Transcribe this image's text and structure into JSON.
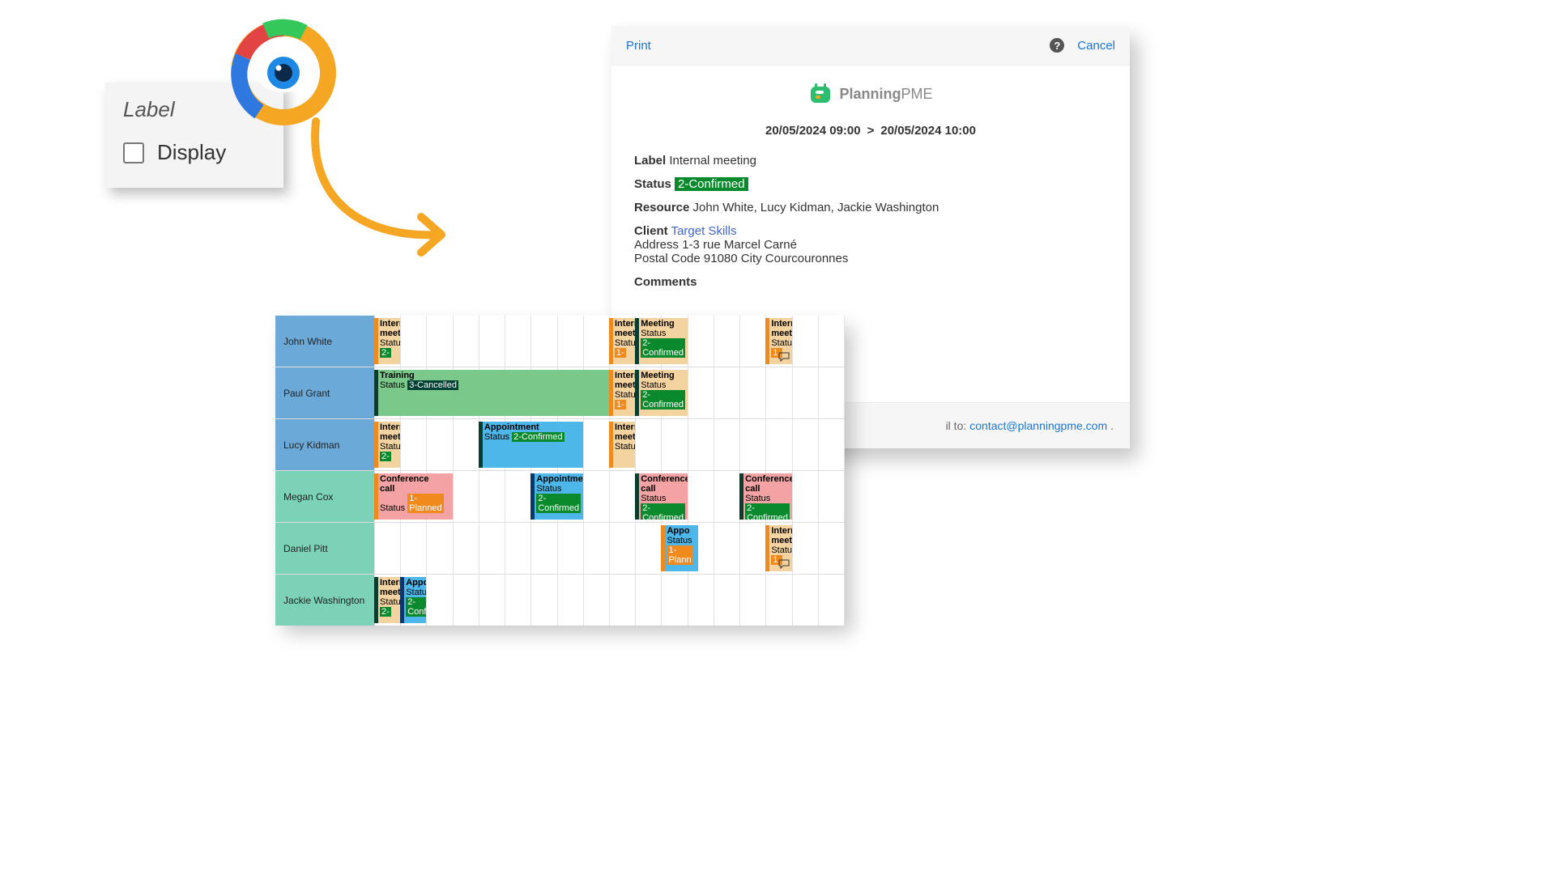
{
  "colors": {
    "blue_header": "#6aa9d8",
    "teal_header": "#7cd2b6",
    "event_beige": "#f3d3a0",
    "event_green": "#7ac88a",
    "event_sky": "#4db7ea",
    "event_pink": "#f3a3a3",
    "stripe_orange": "#f08a1d",
    "stripe_darkgreen": "#0b3d2e",
    "stripe_green": "#0a8a2d",
    "stripe_darkblue": "#0b376b",
    "chip_orange": "#f08a1d",
    "chip_green": "#0a8a2d",
    "chip_darkteal": "#014034",
    "print_link": "#1976d2"
  },
  "label_card": {
    "title": "Label",
    "checkbox_label": "Display"
  },
  "print_panel": {
    "print": "Print",
    "cancel": "Cancel",
    "brand_a": "Planning",
    "brand_b": "PME",
    "date_from": "20/05/2024 09:00",
    "date_sep": ">",
    "date_to": "20/05/2024 10:00",
    "label_key": "Label",
    "label_val": "Internal meeting",
    "status_key": "Status",
    "status_val": "2-Confirmed",
    "resource_key": "Resource",
    "resource_val": "John White, Lucy Kidman, Jackie Washington",
    "client_key": "Client",
    "client_val": "Target Skills",
    "address_key": "Address",
    "address_val": "1-3 rue Marcel Carné",
    "postal_key": "Postal Code",
    "postal_val": "91080",
    "city_key": "City",
    "city_val": "Courcouronnes",
    "comments_key": "Comments",
    "footer_txt": "il to:",
    "footer_mail": "contact@planningpme.com"
  },
  "schedule": {
    "track_width": 580,
    "name_width": 122,
    "columns": 18,
    "rows": [
      {
        "name": "John White",
        "color": "blue_header",
        "events": [
          {
            "start": 0,
            "span": 1,
            "bg": "event_beige",
            "stripe": "stripe_orange",
            "title": "Interr\nmeeti",
            "status": "Statu",
            "chip": "2-",
            "chip_bg": "chip_green"
          },
          {
            "start": 9,
            "span": 1,
            "bg": "event_beige",
            "stripe": "stripe_orange",
            "title": "Interr\nmeeti",
            "status": "Statu",
            "chip": "1-",
            "chip_bg": "chip_orange"
          },
          {
            "start": 10,
            "span": 2,
            "bg": "event_beige",
            "stripe": "stripe_darkgreen",
            "title": "Meeting",
            "status": "Status",
            "chip": "2-\nConfirmed",
            "chip_bg": "chip_green"
          },
          {
            "start": 15,
            "span": 1,
            "bg": "event_beige",
            "stripe": "stripe_orange",
            "title": "Interr\nmeeti",
            "status": "Statu",
            "chip": "1-",
            "chip_bg": "chip_orange",
            "comment": true
          }
        ]
      },
      {
        "name": "Paul Grant",
        "color": "blue_header",
        "events": [
          {
            "start": 0,
            "span": 9,
            "bg": "event_green",
            "stripe": "stripe_darkgreen",
            "title": "Training",
            "status": "Status",
            "chip": "3-Cancelled",
            "chip_bg": "chip_darkteal"
          },
          {
            "start": 9,
            "span": 1,
            "bg": "event_beige",
            "stripe": "stripe_orange",
            "title": "Interr\nmeeti",
            "status": "Statu",
            "chip": "1-",
            "chip_bg": "chip_orange"
          },
          {
            "start": 10,
            "span": 2,
            "bg": "event_beige",
            "stripe": "stripe_darkgreen",
            "title": "Meeting",
            "status": "Status",
            "chip": "2-\nConfirmed",
            "chip_bg": "chip_green"
          }
        ]
      },
      {
        "name": "Lucy Kidman",
        "color": "blue_header",
        "events": [
          {
            "start": 0,
            "span": 1,
            "bg": "event_beige",
            "stripe": "stripe_orange",
            "title": "Interr\nmeeti",
            "status": "Statu",
            "chip": "2-",
            "chip_bg": "chip_green"
          },
          {
            "start": 4,
            "span": 4,
            "bg": "event_sky",
            "stripe": "stripe_darkgreen",
            "title": "Appointment",
            "status": "Status",
            "chip": "2-Confirmed",
            "chip_bg": "chip_green"
          },
          {
            "start": 9,
            "span": 1,
            "bg": "event_beige",
            "stripe": "stripe_orange",
            "title": "Interr\nmeeti",
            "status": "Statu",
            "chip": "",
            "chip_bg": "chip_green"
          }
        ]
      },
      {
        "name": "Megan Cox",
        "color": "teal_header",
        "events": [
          {
            "start": 0,
            "span": 3,
            "bg": "event_pink",
            "stripe": "stripe_orange",
            "title": "Conference\ncall",
            "status": "Status",
            "chip": "1-\nPlanned",
            "chip_bg": "chip_orange"
          },
          {
            "start": 6,
            "span": 2,
            "bg": "event_sky",
            "stripe": "stripe_darkblue",
            "title": "Appointmen",
            "status": "Status",
            "chip": "2-\nConfirmed",
            "chip_bg": "chip_green"
          },
          {
            "start": 10,
            "span": 2,
            "bg": "event_pink",
            "stripe": "stripe_darkgreen",
            "title": "Conference\ncall",
            "status": "Status",
            "chip": "2-\nConfirmed",
            "chip_bg": "chip_green"
          },
          {
            "start": 14,
            "span": 2,
            "bg": "event_pink",
            "stripe": "stripe_darkgreen",
            "title": "Conference\ncall",
            "status": "Status",
            "chip": "2-\nConfirmed",
            "chip_bg": "chip_green"
          }
        ]
      },
      {
        "name": "Daniel Pitt",
        "color": "teal_header",
        "events": [
          {
            "start": 11,
            "span": 1.4,
            "bg": "event_sky",
            "stripe": "stripe_orange",
            "title": "Appo",
            "status": "Status",
            "chip": "1-\nPlann",
            "chip_bg": "chip_orange"
          },
          {
            "start": 15,
            "span": 1,
            "bg": "event_beige",
            "stripe": "stripe_orange",
            "title": "Interr\nmeeti",
            "status": "Statu",
            "chip": "1-",
            "chip_bg": "chip_orange",
            "comment": true
          }
        ]
      },
      {
        "name": "Jackie Washington",
        "color": "teal_header",
        "events": [
          {
            "start": 0,
            "span": 1,
            "bg": "event_beige",
            "stripe": "stripe_darkgreen",
            "title": "Interr\nmeeti",
            "status": "Statu",
            "chip": "2-",
            "chip_bg": "chip_green"
          },
          {
            "start": 1,
            "span": 1,
            "bg": "event_sky",
            "stripe": "stripe_darkblue",
            "title": "Appo",
            "status": "Statu",
            "chip": "2-\nConfi",
            "chip_bg": "chip_green"
          }
        ]
      }
    ]
  }
}
